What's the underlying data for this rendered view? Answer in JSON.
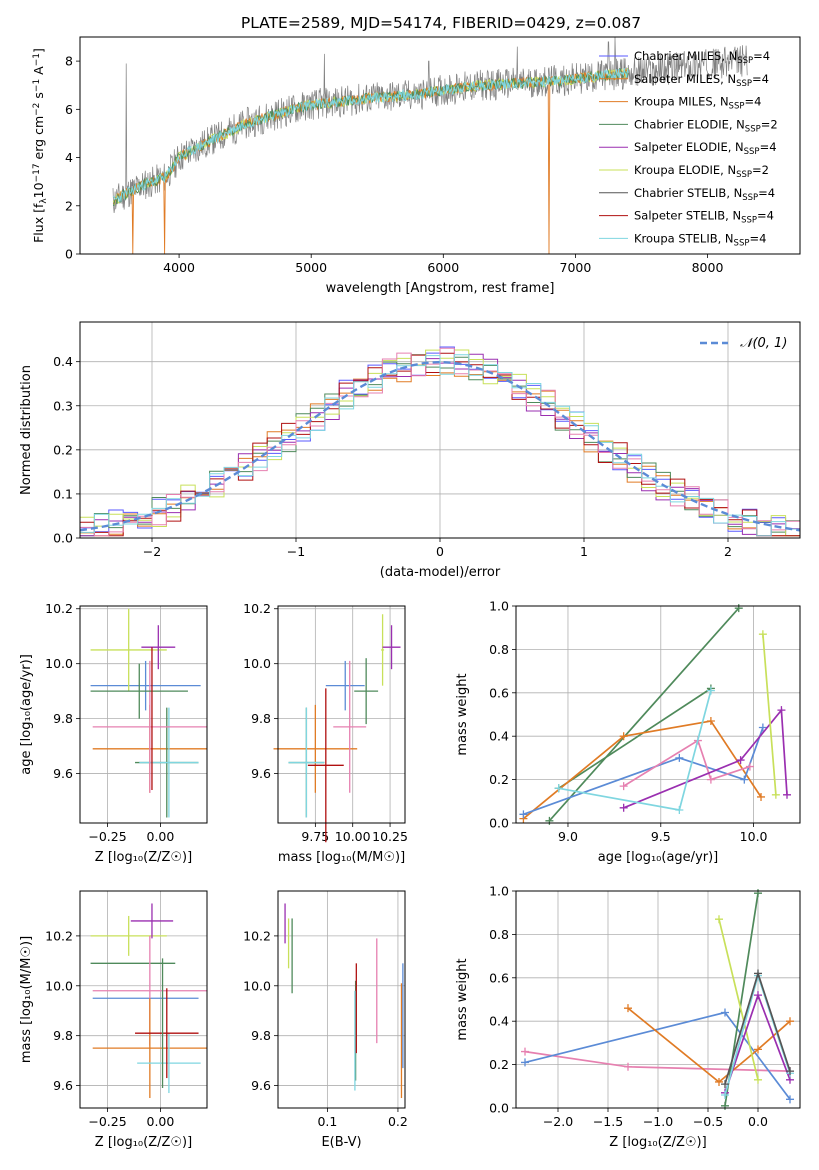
{
  "figure_title": "PLATE=2589, MJD=54174, FIBERID=0429, z=0.087",
  "colors": {
    "Chabrier MILES": "#5a5aff",
    "Salpeter MILES": "#e07b25",
    "Kroupa MILES": "#e07b25",
    "Chabrier ELODIE": "#4f8a5b",
    "Salpeter ELODIE": "#9a2fb0",
    "Kroupa ELODIE": "#c8e05a",
    "Chabrier STELIB": "#555555",
    "Salpeter STELIB": "#b01010",
    "Kroupa STELIB": "#7fd6e0",
    "data": "#808080",
    "normal": "#5b8bd6",
    "pink": "#e680b0",
    "blue": "#5b8bd6"
  },
  "chart_data": [
    {
      "id": "spectrum",
      "type": "line",
      "xlabel": "wavelength [Angstrom, rest frame]",
      "ylabel_parts": [
        "Flux [f",
        "λ",
        "10",
        "−17",
        " erg cm",
        "−2",
        " s",
        "−1",
        " A",
        "−1",
        "]"
      ],
      "xlim": [
        3250,
        8700
      ],
      "ylim": [
        0,
        9
      ],
      "xticks": [
        4000,
        5000,
        6000,
        7000,
        8000
      ],
      "yticks": [
        0,
        2,
        4,
        6,
        8
      ],
      "grid": false,
      "legend_position": "upper-right",
      "legend": [
        {
          "label": "Chabrier MILES, N",
          "sub": "SSP",
          "tail": "=4",
          "color_key": "Chabrier MILES"
        },
        {
          "label": "Salpeter MILES, N",
          "sub": "SSP",
          "tail": "=4",
          "color_key": "Salpeter MILES"
        },
        {
          "label": "Kroupa MILES, N",
          "sub": "SSP",
          "tail": "=4",
          "color_key": "Kroupa MILES"
        },
        {
          "label": "Chabrier ELODIE, N",
          "sub": "SSP",
          "tail": "=2",
          "color_key": "Chabrier ELODIE"
        },
        {
          "label": "Salpeter ELODIE, N",
          "sub": "SSP",
          "tail": "=4",
          "color_key": "Salpeter ELODIE"
        },
        {
          "label": "Kroupa ELODIE, N",
          "sub": "SSP",
          "tail": "=2",
          "color_key": "Kroupa ELODIE"
        },
        {
          "label": "Chabrier STELIB, N",
          "sub": "SSP",
          "tail": "=4",
          "color_key": "Chabrier STELIB"
        },
        {
          "label": "Salpeter STELIB, N",
          "sub": "SSP",
          "tail": "=4",
          "color_key": "Salpeter STELIB"
        },
        {
          "label": "Kroupa STELIB, N",
          "sub": "SSP",
          "tail": "=4",
          "color_key": "Kroupa STELIB"
        }
      ],
      "continuum": {
        "x": [
          3500,
          3700,
          3900,
          4000,
          4200,
          4500,
          4800,
          5000,
          5200,
          5500,
          5800,
          6000,
          6300,
          6600,
          6900,
          7200,
          7400
        ],
        "y": [
          2.2,
          2.8,
          3.2,
          4.0,
          4.6,
          5.4,
          5.9,
          6.2,
          6.3,
          6.5,
          6.6,
          6.8,
          7.0,
          7.1,
          7.2,
          7.4,
          7.5
        ]
      },
      "data_range": [
        3500,
        8300
      ],
      "model_range": [
        3500,
        7400
      ],
      "noise_amplitude": 0.6,
      "spikes": [
        {
          "x": 3600,
          "y": 7.9
        },
        {
          "x": 5100,
          "y": 8.3
        },
        {
          "x": 5890,
          "y": 8.0
        },
        {
          "x": 6560,
          "y": 8.6
        },
        {
          "x": 7250,
          "y": 8.8
        },
        {
          "x": 7300,
          "y": 9
        }
      ],
      "dips": [
        {
          "x": 3650,
          "y": 0
        },
        {
          "x": 3890,
          "y": 0
        },
        {
          "x": 6800,
          "y": 0
        },
        {
          "x": 7410,
          "y": 0
        }
      ]
    },
    {
      "id": "residuals",
      "type": "histogram",
      "xlabel": "(data-model)/error",
      "ylabel": "Normed distribution",
      "xlim": [
        -2.5,
        2.5
      ],
      "ylim": [
        0,
        0.49
      ],
      "xticks": [
        -2,
        -1,
        0,
        1,
        2
      ],
      "xtick_labels": [
        "−2",
        "−1",
        "0",
        "1",
        "2"
      ],
      "yticks": [
        0.0,
        0.1,
        0.2,
        0.3,
        0.4
      ],
      "ytick_labels": [
        "0.0",
        "0.1",
        "0.2",
        "0.3",
        "0.4"
      ],
      "grid": true,
      "legend": [
        {
          "label": "𝒩(0, 1)",
          "style": "dashed",
          "color_key": "normal"
        }
      ],
      "legend_position": "upper-right",
      "bin_width": 0.1,
      "bin_start": -2.5,
      "base_series": "normal_pdf",
      "series": [
        {
          "color_key": "Chabrier MILES",
          "seed": 1
        },
        {
          "color_key": "Salpeter MILES",
          "seed": 2
        },
        {
          "color_key": "Chabrier ELODIE",
          "seed": 3
        },
        {
          "color_key": "Salpeter ELODIE",
          "seed": 4
        },
        {
          "color_key": "Kroupa ELODIE",
          "seed": 5
        },
        {
          "color_key": "Salpeter STELIB",
          "seed": 6
        },
        {
          "color_key": "pink",
          "seed": 7
        },
        {
          "color_key": "Kroupa STELIB",
          "seed": 8
        }
      ]
    },
    {
      "id": "age_vs_Z",
      "type": "errorbar",
      "xlabel": "Z [log₁₀(Z/Z☉)]",
      "ylabel": "age  [log₁₀(age/yr)]",
      "xlim": [
        -0.38,
        0.22
      ],
      "ylim": [
        9.42,
        10.21
      ],
      "xticks": [
        -0.25,
        0.0
      ],
      "xtick_labels": [
        "−0.25",
        "0.00"
      ],
      "yticks": [
        9.6,
        9.8,
        10.0,
        10.2
      ],
      "ytick_labels": [
        "9.6",
        "9.8",
        "10.0",
        "10.2"
      ],
      "grid": true,
      "points": [
        {
          "x": -0.05,
          "xerr": 0.27,
          "y": 9.69,
          "yerr": 0.16,
          "color_key": "Salpeter MILES"
        },
        {
          "x": 0.03,
          "xerr": 0.15,
          "y": 9.64,
          "yerr": 0.2,
          "color_key": "Chabrier ELODIE"
        },
        {
          "x": 0.04,
          "xerr": 0.14,
          "y": 9.64,
          "yerr": 0.2,
          "color_key": "Kroupa STELIB"
        },
        {
          "x": -0.07,
          "xerr": 0.26,
          "y": 9.92,
          "yerr": 0.09,
          "color_key": "blue"
        },
        {
          "x": -0.05,
          "xerr": 0.27,
          "y": 9.77,
          "yerr": 0.24,
          "color_key": "pink"
        },
        {
          "x": -0.15,
          "xerr": 0.18,
          "y": 10.05,
          "yerr": 0.15,
          "color_key": "Kroupa ELODIE"
        },
        {
          "x": -0.1,
          "xerr": 0.23,
          "y": 9.9,
          "yerr": 0.1,
          "color_key": "Chabrier ELODIE"
        },
        {
          "x": -0.01,
          "xerr": 0.08,
          "y": 10.06,
          "yerr": 0.08,
          "color_key": "Salpeter ELODIE"
        },
        {
          "x": -0.04,
          "xerr": 0.0,
          "y": 9.8,
          "yerr": 0.26,
          "color_key": "Salpeter STELIB"
        }
      ]
    },
    {
      "id": "age_vs_mass",
      "type": "errorbar",
      "xlabel": "mass [log₁₀(M/M☉)]",
      "ylabel": "",
      "xlim": [
        9.5,
        10.35
      ],
      "ylim": [
        9.42,
        10.21
      ],
      "xticks": [
        9.75,
        10.0,
        10.25
      ],
      "xtick_labels": [
        "9.75",
        "10.00",
        "10.25"
      ],
      "yticks": [
        9.6,
        9.8,
        10.0,
        10.2
      ],
      "ytick_labels": [
        "9.6",
        "9.8",
        "10.0",
        "10.2"
      ],
      "grid": true,
      "points": [
        {
          "x": 9.75,
          "xerr": 0.28,
          "y": 9.69,
          "yerr": 0.16,
          "color_key": "Salpeter MILES"
        },
        {
          "x": 9.69,
          "xerr": 0.12,
          "y": 9.64,
          "yerr": 0.2,
          "color_key": "Chabrier ELODIE"
        },
        {
          "x": 9.69,
          "xerr": 0.12,
          "y": 9.64,
          "yerr": 0.2,
          "color_key": "Kroupa STELIB"
        },
        {
          "x": 9.95,
          "xerr": 0.13,
          "y": 9.92,
          "yerr": 0.09,
          "color_key": "blue"
        },
        {
          "x": 9.98,
          "xerr": 0.11,
          "y": 9.77,
          "yerr": 0.24,
          "color_key": "pink"
        },
        {
          "x": 10.2,
          "xerr": 0.01,
          "y": 10.05,
          "yerr": 0.13,
          "color_key": "Kroupa ELODIE"
        },
        {
          "x": 10.09,
          "xerr": 0.08,
          "y": 9.9,
          "yerr": 0.12,
          "color_key": "Chabrier ELODIE"
        },
        {
          "x": 10.26,
          "xerr": 0.06,
          "y": 10.06,
          "yerr": 0.08,
          "color_key": "Salpeter ELODIE"
        },
        {
          "x": 9.82,
          "xerr": 0.12,
          "y": 9.63,
          "yerr": 0.28,
          "color_key": "Salpeter STELIB"
        }
      ]
    },
    {
      "id": "weight_vs_age",
      "type": "line",
      "xlabel": "age  [log₁₀(age/yr)]",
      "ylabel": "mass weight",
      "xlim": [
        8.72,
        10.25
      ],
      "ylim": [
        0,
        1
      ],
      "xticks": [
        9.0,
        9.5,
        10.0
      ],
      "xtick_labels": [
        "9.0",
        "9.5",
        "10.0"
      ],
      "yticks": [
        0.0,
        0.2,
        0.4,
        0.6,
        0.8,
        1.0
      ],
      "ytick_labels": [
        "0.0",
        "0.2",
        "0.4",
        "0.6",
        "0.8",
        "1.0"
      ],
      "grid": true,
      "series": [
        {
          "color_key": "Chabrier ELODIE",
          "x": [
            8.9,
            9.92
          ],
          "y": [
            0.01,
            0.99
          ]
        },
        {
          "color_key": "Chabrier ELODIE",
          "x": [
            8.95,
            9.77
          ],
          "y": [
            0.16,
            0.62
          ]
        },
        {
          "color_key": "Salpeter MILES",
          "x": [
            8.76,
            9.3,
            9.77,
            10.04
          ],
          "y": [
            0.02,
            0.4,
            0.47,
            0.12
          ]
        },
        {
          "color_key": "blue",
          "x": [
            8.76,
            9.6,
            9.95,
            10.05
          ],
          "y": [
            0.04,
            0.3,
            0.2,
            0.44
          ]
        },
        {
          "color_key": "pink",
          "x": [
            9.3,
            9.7,
            9.77,
            9.98
          ],
          "y": [
            0.17,
            0.38,
            0.2,
            0.26
          ]
        },
        {
          "color_key": "Salpeter ELODIE",
          "x": [
            9.3,
            9.93,
            10.15,
            10.18
          ],
          "y": [
            0.07,
            0.29,
            0.52,
            0.13
          ]
        },
        {
          "color_key": "Kroupa STELIB",
          "x": [
            8.95,
            9.6,
            9.77
          ],
          "y": [
            0.16,
            0.06,
            0.61
          ]
        },
        {
          "color_key": "Kroupa ELODIE",
          "x": [
            10.05,
            10.12
          ],
          "y": [
            0.87,
            0.13
          ]
        }
      ]
    },
    {
      "id": "mass_vs_Z",
      "type": "errorbar",
      "xlabel": "Z [log₁₀(Z/Z☉)]",
      "ylabel": "mass [log₁₀(M/M☉)]",
      "xlim": [
        -0.38,
        0.22
      ],
      "ylim": [
        9.51,
        10.38
      ],
      "xticks": [
        -0.25,
        0.0
      ],
      "xtick_labels": [
        "−0.25",
        "0.00"
      ],
      "yticks": [
        9.6,
        9.8,
        10.0,
        10.2
      ],
      "ytick_labels": [
        "9.6",
        "9.8",
        "10.0",
        "10.2"
      ],
      "grid": true,
      "points": [
        {
          "x": -0.15,
          "xerr": 0.18,
          "y": 10.2,
          "yerr": 0.08,
          "color_key": "Kroupa ELODIE"
        },
        {
          "x": -0.04,
          "xerr": 0.1,
          "y": 10.26,
          "yerr": 0.07,
          "color_key": "Salpeter ELODIE"
        },
        {
          "x": -0.13,
          "xerr": 0.2,
          "y": 10.09,
          "yerr": 0.0,
          "color_key": "Chabrier ELODIE"
        },
        {
          "x": -0.07,
          "xerr": 0.25,
          "y": 9.95,
          "yerr": 0.0,
          "color_key": "blue"
        },
        {
          "x": -0.05,
          "xerr": 0.27,
          "y": 9.98,
          "yerr": 0.22,
          "color_key": "pink"
        },
        {
          "x": -0.05,
          "xerr": 0.27,
          "y": 9.75,
          "yerr": 0.2,
          "color_key": "Salpeter MILES"
        },
        {
          "x": 0.04,
          "xerr": 0.15,
          "y": 9.69,
          "yerr": 0.12,
          "color_key": "Kroupa STELIB"
        },
        {
          "x": 0.03,
          "xerr": 0.15,
          "y": 9.81,
          "yerr": 0.18,
          "color_key": "Salpeter STELIB"
        },
        {
          "x": 0.01,
          "xerr": 0.0,
          "y": 9.85,
          "yerr": 0.26,
          "color_key": "Chabrier ELODIE"
        }
      ]
    },
    {
      "id": "mass_vs_ebv",
      "type": "errorbar",
      "xlabel": "E(B-V)",
      "ylabel": "",
      "xlim": [
        0.03,
        0.21
      ],
      "ylim": [
        9.51,
        10.38
      ],
      "xticks": [
        0.1,
        0.2
      ],
      "xtick_labels": [
        "0.1",
        "0.2"
      ],
      "yticks": [
        9.6,
        9.8,
        10.0,
        10.2
      ],
      "ytick_labels": [
        "9.6",
        "9.8",
        "10.0",
        "10.2"
      ],
      "grid": true,
      "points": [
        {
          "x": 0.04,
          "xerr": 0.0,
          "y": 10.25,
          "yerr": 0.08,
          "color_key": "Salpeter ELODIE"
        },
        {
          "x": 0.045,
          "xerr": 0.0,
          "y": 10.17,
          "yerr": 0.1,
          "color_key": "Kroupa ELODIE"
        },
        {
          "x": 0.05,
          "xerr": 0.0,
          "y": 10.12,
          "yerr": 0.15,
          "color_key": "Chabrier ELODIE"
        },
        {
          "x": 0.14,
          "xerr": 0.0,
          "y": 9.82,
          "yerr": 0.2,
          "color_key": "Chabrier ELODIE"
        },
        {
          "x": 0.141,
          "xerr": 0.0,
          "y": 9.91,
          "yerr": 0.18,
          "color_key": "Salpeter STELIB"
        },
        {
          "x": 0.139,
          "xerr": 0.0,
          "y": 9.78,
          "yerr": 0.2,
          "color_key": "Kroupa STELIB"
        },
        {
          "x": 0.17,
          "xerr": 0.0,
          "y": 9.98,
          "yerr": 0.21,
          "color_key": "pink"
        },
        {
          "x": 0.205,
          "xerr": 0.0,
          "y": 9.78,
          "yerr": 0.23,
          "color_key": "Salpeter MILES"
        },
        {
          "x": 0.207,
          "xerr": 0.0,
          "y": 9.88,
          "yerr": 0.21,
          "color_key": "blue"
        }
      ]
    },
    {
      "id": "weight_vs_Z",
      "type": "line",
      "xlabel": "Z [log₁₀(Z/Z☉)]",
      "ylabel": "mass weight",
      "xlim": [
        -2.42,
        0.42
      ],
      "ylim": [
        0,
        1
      ],
      "xticks": [
        -2.0,
        -1.5,
        -1.0,
        -0.5,
        0.0
      ],
      "xtick_labels": [
        "−2.0",
        "−1.5",
        "−1.0",
        "−0.5",
        "0.0"
      ],
      "yticks": [
        0.0,
        0.2,
        0.4,
        0.6,
        0.8,
        1.0
      ],
      "ytick_labels": [
        "0.0",
        "0.2",
        "0.4",
        "0.6",
        "0.8",
        "1.0"
      ],
      "grid": true,
      "series": [
        {
          "color_key": "pink",
          "x": [
            -2.33,
            -1.3,
            0.32
          ],
          "y": [
            0.26,
            0.19,
            0.17
          ]
        },
        {
          "color_key": "blue",
          "x": [
            -2.33,
            -0.33,
            0.32
          ],
          "y": [
            0.21,
            0.44,
            0.04
          ]
        },
        {
          "color_key": "Salpeter MILES",
          "x": [
            -1.3,
            -0.39,
            0.0,
            0.32
          ],
          "y": [
            0.46,
            0.12,
            0.27,
            0.4
          ]
        },
        {
          "color_key": "Chabrier ELODIE",
          "x": [
            -0.33,
            0.0
          ],
          "y": [
            0.01,
            0.99
          ]
        },
        {
          "color_key": "Kroupa ELODIE",
          "x": [
            -0.39,
            -0.0
          ],
          "y": [
            0.87,
            0.13
          ]
        },
        {
          "color_key": "Salpeter ELODIE",
          "x": [
            -0.33,
            0.0,
            0.32
          ],
          "y": [
            0.07,
            0.52,
            0.13
          ]
        },
        {
          "color_key": "Kroupa STELIB",
          "x": [
            -0.33,
            0.0,
            0.32
          ],
          "y": [
            0.06,
            0.61,
            0.16
          ]
        },
        {
          "color_key": "Chabrier STELIB",
          "x": [
            -0.33,
            0.0,
            0.32
          ],
          "y": [
            0.11,
            0.62,
            0.17
          ]
        }
      ]
    }
  ]
}
